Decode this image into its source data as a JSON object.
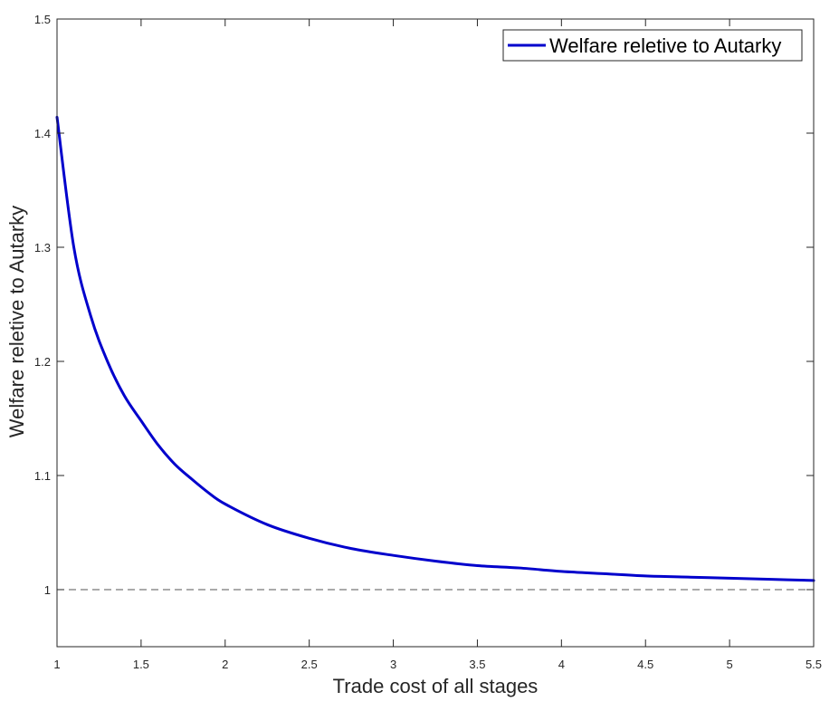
{
  "chart_data": {
    "type": "line",
    "title": "",
    "xlabel": "Trade cost of all stages",
    "ylabel": "Welfare reletive to Autarky",
    "xlim": [
      1,
      5.5
    ],
    "ylim": [
      0.95,
      1.5
    ],
    "xticks": [
      1,
      1.5,
      2,
      2.5,
      3,
      3.5,
      4,
      4.5,
      5,
      5.5
    ],
    "xtick_labels": [
      "1",
      "1.5",
      "2",
      "2.5",
      "3",
      "3.5",
      "4",
      "4.5",
      "5",
      "5.5"
    ],
    "yticks": [
      1,
      1.1,
      1.2,
      1.3,
      1.4,
      1.5
    ],
    "ytick_labels": [
      "1",
      "1.1",
      "1.2",
      "1.3",
      "1.4",
      "1.5"
    ],
    "grid": false,
    "legend_placement": "top-right",
    "reference_line": {
      "y": 1,
      "style": "dashed",
      "color": "#555555"
    },
    "series": [
      {
        "name": "Welfare reletive to Autarky",
        "color": "#0000cc",
        "x": [
          1,
          1.1,
          1.2,
          1.3,
          1.4,
          1.5,
          1.6,
          1.7,
          1.8,
          1.9,
          2,
          2.25,
          2.5,
          2.75,
          3,
          3.25,
          3.5,
          3.75,
          4,
          4.25,
          4.5,
          4.75,
          5,
          5.25,
          5.5
        ],
        "y": [
          1.414,
          1.3,
          1.24,
          1.2,
          1.17,
          1.148,
          1.127,
          1.11,
          1.097,
          1.085,
          1.075,
          1.057,
          1.045,
          1.036,
          1.03,
          1.025,
          1.021,
          1.019,
          1.016,
          1.014,
          1.012,
          1.011,
          1.01,
          1.009,
          1.008
        ]
      }
    ]
  }
}
